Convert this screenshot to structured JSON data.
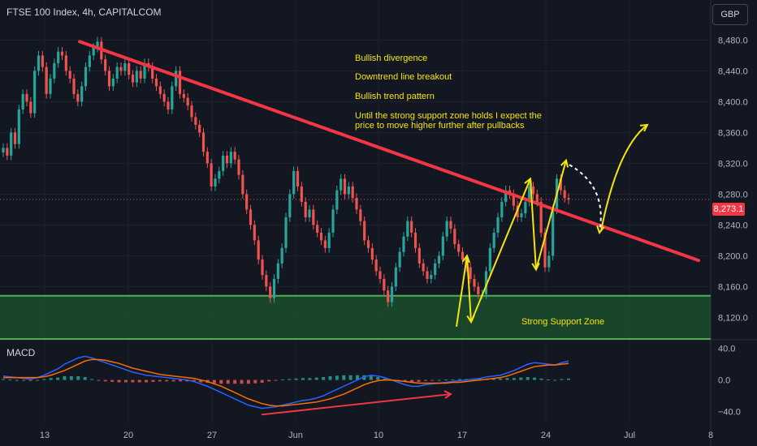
{
  "header": {
    "title": "FTSE 100 Index, 4h, CAPITALCOM",
    "currency": "GBP"
  },
  "annotations": {
    "line1": "Bullish divergence",
    "line2": "Downtrend line breakout",
    "line3": "Bullish trend pattern",
    "line4a": "Until the strong support zone holds I expect the",
    "line4b": "price to move higher further after pullbacks",
    "support_zone": "Strong Support Zone"
  },
  "colors": {
    "up": "#26a69a",
    "down": "#ef5350",
    "trend": "#f23645",
    "zone": "#4caf50",
    "arrow": "#f5e50b",
    "bg": "#131722"
  },
  "chart_data": {
    "type": "candlestick",
    "price_axis": {
      "ticks": [
        8480,
        8440,
        8400,
        8360,
        8320,
        8280,
        8240,
        8200,
        8160,
        8120
      ],
      "tick_labels": [
        "8,480.0",
        "8,440.0",
        "8,400.0",
        "8,360.0",
        "8,320.0",
        "8,280.0",
        "8,240.0",
        "8,200.0",
        "8,160.0",
        "8,120.0"
      ],
      "range": [
        8092,
        8532
      ]
    },
    "last_price": {
      "value": 8273.1,
      "label": "8,273.1"
    },
    "macd": {
      "label": "MACD",
      "ticks": [
        40,
        0,
        -40
      ],
      "tick_labels": [
        "40.0",
        "0.0",
        "−40.0"
      ],
      "range": [
        -55,
        50
      ]
    },
    "time_axis": {
      "labels": [
        "13",
        "20",
        "27",
        "Jun",
        "10",
        "17",
        "24",
        "Jul",
        "8"
      ]
    },
    "support_zone": {
      "low": 8092,
      "high": 8148
    },
    "trend_line": {
      "start": 8478,
      "end": 8194
    },
    "series": [
      {
        "name": "price",
        "values": [
          8340,
          8330,
          8360,
          8345,
          8390,
          8410,
          8400,
          8385,
          8440,
          8460,
          8445,
          8410,
          8430,
          8450,
          8465,
          8460,
          8440,
          8430,
          8410,
          8400,
          8420,
          8445,
          8460,
          8470,
          8478,
          8455,
          8440,
          8420,
          8430,
          8445,
          8440,
          8450,
          8435,
          8425,
          8440,
          8430,
          8450,
          8445,
          8430,
          8420,
          8410,
          8400,
          8390,
          8420,
          8440,
          8410,
          8405,
          8395,
          8380,
          8370,
          8360,
          8335,
          8320,
          8290,
          8300,
          8310,
          8330,
          8320,
          8335,
          8325,
          8305,
          8280,
          8260,
          8240,
          8220,
          8195,
          8175,
          8160,
          8145,
          8170,
          8190,
          8210,
          8250,
          8280,
          8310,
          8290,
          8270,
          8250,
          8260,
          8240,
          8230,
          8220,
          8210,
          8230,
          8260,
          8285,
          8300,
          8280,
          8290,
          8275,
          8260,
          8245,
          8220,
          8210,
          8195,
          8180,
          8170,
          8155,
          8140,
          8160,
          8185,
          8205,
          8225,
          8245,
          8230,
          8210,
          8190,
          8180,
          8170,
          8175,
          8190,
          8200,
          8225,
          8245,
          8235,
          8215,
          8205,
          8195,
          8185,
          8170,
          8160,
          8150,
          8150,
          8180,
          8210,
          8230,
          8250,
          8270,
          8285,
          8280,
          8265,
          8250,
          8255,
          8270,
          8290,
          8280,
          8270,
          8230,
          8185,
          8200,
          8260,
          8300,
          8285,
          8275,
          8273
        ]
      },
      {
        "name": "macd_line",
        "values": [
          5,
          4,
          3,
          2,
          1,
          3,
          6,
          10,
          14,
          20,
          24,
          28,
          30,
          28,
          25,
          22,
          19,
          16,
          13,
          10,
          8,
          6,
          5,
          4,
          3,
          2,
          1,
          0,
          -2,
          -5,
          -8,
          -12,
          -16,
          -20,
          -24,
          -28,
          -32,
          -34,
          -36,
          -35,
          -34,
          -32,
          -30,
          -28,
          -26,
          -25,
          -23,
          -20,
          -16,
          -12,
          -8,
          -4,
          0,
          4,
          6,
          5,
          3,
          0,
          -3,
          -6,
          -8,
          -8,
          -6,
          -5,
          -4,
          -3,
          -2,
          -1,
          0,
          1,
          2,
          4,
          5,
          6,
          9,
          12,
          16,
          20,
          22,
          21,
          20,
          19,
          22,
          24
        ]
      },
      {
        "name": "signal_line",
        "values": [
          3,
          3,
          3,
          3,
          3,
          3,
          4,
          6,
          9,
          12,
          16,
          20,
          24,
          26,
          26,
          25,
          23,
          21,
          18,
          15,
          13,
          11,
          9,
          7,
          6,
          5,
          4,
          3,
          2,
          0,
          -2,
          -5,
          -8,
          -12,
          -16,
          -20,
          -24,
          -27,
          -30,
          -32,
          -33,
          -33,
          -32,
          -31,
          -30,
          -29,
          -28,
          -26,
          -24,
          -21,
          -18,
          -14,
          -10,
          -6,
          -3,
          -1,
          0,
          0,
          -1,
          -2,
          -3,
          -4,
          -4,
          -4,
          -4,
          -4,
          -3,
          -3,
          -2,
          -1,
          0,
          1,
          2,
          3,
          5,
          8,
          11,
          14,
          17,
          18,
          19,
          19,
          20,
          21
        ]
      }
    ],
    "divergence_line": {
      "macd_start": -44,
      "macd_end": -18
    }
  }
}
